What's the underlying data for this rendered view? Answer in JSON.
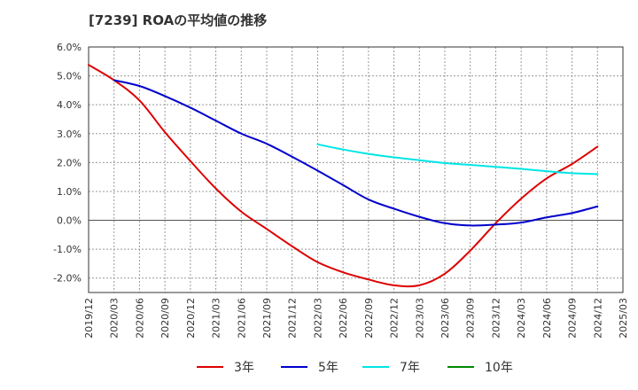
{
  "chart_data": {
    "type": "line",
    "title": "[7239]  ROAの平均値の推移",
    "xlabel": "",
    "ylabel": "",
    "ylim": [
      -2.5,
      6.0
    ],
    "y_ticks": [
      "6.0%",
      "5.0%",
      "4.0%",
      "3.0%",
      "2.0%",
      "1.0%",
      "0.0%",
      "-1.0%",
      "-2.0%"
    ],
    "y_tick_values": [
      6,
      5,
      4,
      3,
      2,
      1,
      0,
      -1,
      -2
    ],
    "x_ticks": [
      "2019/12",
      "2020/03",
      "2020/06",
      "2020/09",
      "2020/12",
      "2021/03",
      "2021/06",
      "2021/09",
      "2021/12",
      "2022/03",
      "2022/06",
      "2022/09",
      "2022/12",
      "2023/03",
      "2023/06",
      "2023/09",
      "2023/12",
      "2024/03",
      "2024/06",
      "2024/09",
      "2024/12",
      "2025/03"
    ],
    "grid": true,
    "legend_position": "bottom",
    "series": [
      {
        "name": "3年",
        "color": "#dd0000",
        "start_index": 0,
        "values": [
          5.38,
          4.85,
          4.15,
          3.05,
          2.05,
          1.1,
          0.3,
          -0.3,
          -0.9,
          -1.45,
          -1.8,
          -2.05,
          -2.25,
          -2.25,
          -1.85,
          -1.05,
          -0.1,
          0.75,
          1.45,
          1.95,
          2.55
        ]
      },
      {
        "name": "5年",
        "color": "#0000cc",
        "start_index": 1,
        "values": [
          4.85,
          4.65,
          4.3,
          3.9,
          3.45,
          3.0,
          2.65,
          2.2,
          1.72,
          1.22,
          0.72,
          0.4,
          0.12,
          -0.1,
          -0.18,
          -0.15,
          -0.08,
          0.1,
          0.25,
          0.48
        ]
      },
      {
        "name": "7年",
        "color": "#00e5e5",
        "start_index": 9,
        "values": [
          2.63,
          2.45,
          2.3,
          2.18,
          2.08,
          1.98,
          1.92,
          1.85,
          1.78,
          1.7,
          1.63,
          1.6
        ]
      },
      {
        "name": "10年",
        "color": "#008800",
        "start_index": 0,
        "values": []
      }
    ]
  }
}
